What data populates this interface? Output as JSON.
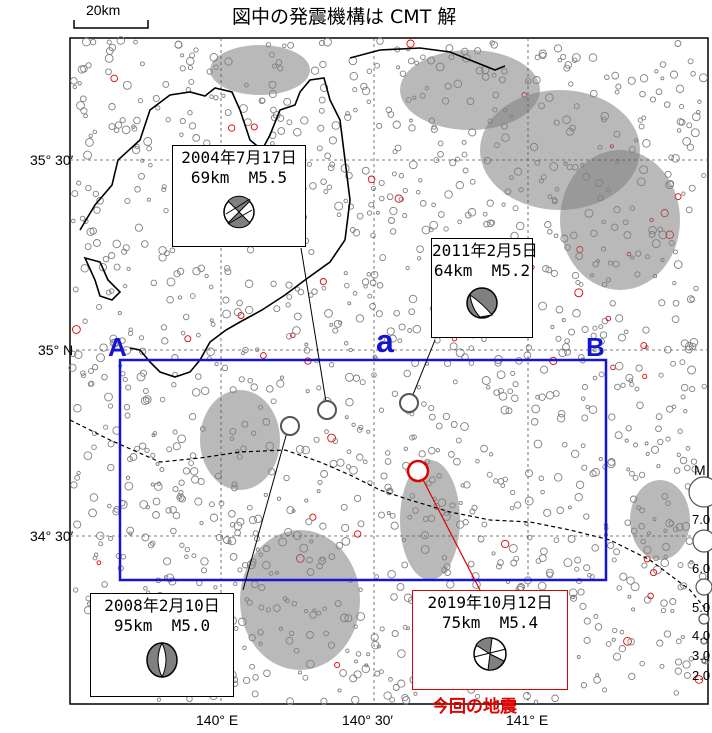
{
  "title": "図中の発震機構は CMT 解",
  "scale_bar": {
    "label": "20km"
  },
  "latitude_labels": [
    "35° 30′",
    "35° N",
    "34° 30′"
  ],
  "longitude_labels": [
    "140° E",
    "140° 30′",
    "141° E"
  ],
  "profile_labels": {
    "start": "A",
    "mid": "a",
    "end": "B"
  },
  "events": [
    {
      "date": "2004年7月17日",
      "depth": "69km",
      "magnitude": "M5.5",
      "mechanism": "beachball-icon"
    },
    {
      "date": "2011年2月5日",
      "depth": "64km",
      "magnitude": "M5.2",
      "mechanism": "beachball-icon"
    },
    {
      "date": "2008年2月10日",
      "depth": "95km",
      "magnitude": "M5.0",
      "mechanism": "beachball-icon"
    },
    {
      "date": "2019年10月12日",
      "depth": "75km",
      "magnitude": "M5.4",
      "mechanism": "beachball-icon",
      "current": true
    }
  ],
  "current_event_label": "今回の地震",
  "legend": {
    "title": "M",
    "levels": [
      "7.0",
      "6.0",
      "5.0",
      "4.0",
      "3.0",
      "2.0"
    ]
  },
  "colors": {
    "seismicity": "#808080",
    "recent": "#e00000",
    "profile_box": "#1414d2",
    "coast": "#000000"
  }
}
